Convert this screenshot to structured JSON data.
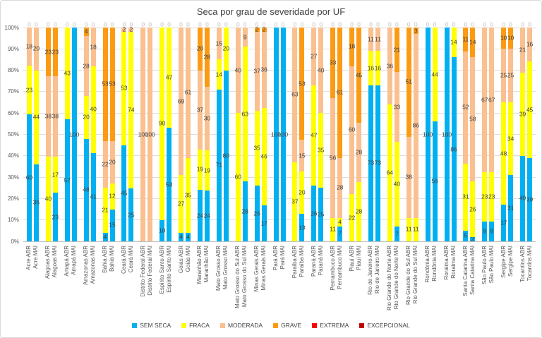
{
  "title": "Seca por grau de severidade por UF",
  "chart_data": {
    "type": "bar",
    "stacked": true,
    "unit": "percent",
    "grid": true,
    "legend_position": "bottom",
    "ylim": [
      0,
      100
    ],
    "y_ticks": [
      "0%",
      "10%",
      "20%",
      "30%",
      "40%",
      "50%",
      "60%",
      "70%",
      "80%",
      "90%",
      "100%"
    ],
    "series": [
      {
        "name": "SEM SECA",
        "color": "#00b0f0"
      },
      {
        "name": "FRACA",
        "color": "#ffff00"
      },
      {
        "name": "MODERADA",
        "color": "#fac090"
      },
      {
        "name": "GRAVE",
        "color": "#fc9b13"
      },
      {
        "name": "EXTREMA",
        "color": "#ff0000"
      },
      {
        "name": "EXCEPCIONAL",
        "color": "#c00000"
      }
    ],
    "bars": [
      {
        "label": "Acre ABR",
        "values": [
          60,
          23,
          18,
          0,
          0,
          0
        ]
      },
      {
        "label": "Acre MAI",
        "values": [
          36,
          44,
          20,
          0,
          0,
          0
        ]
      },
      {
        "label": "Alagoas ABR",
        "values": [
          0,
          40,
          38,
          23,
          0,
          0
        ]
      },
      {
        "label": "Alagoas MAI",
        "values": [
          23,
          17,
          38,
          23,
          0,
          0
        ]
      },
      {
        "label": "Amapá ABR",
        "values": [
          57,
          43,
          0,
          0,
          0,
          0
        ]
      },
      {
        "label": "Amapá MAI",
        "values": [
          100,
          0,
          0,
          0,
          0,
          0
        ]
      },
      {
        "label": "Amazonas ABR",
        "values": [
          48,
          20,
          28,
          4,
          0,
          0
        ]
      },
      {
        "label": "Amazonas MAI",
        "values": [
          41,
          40,
          18,
          0,
          0,
          0
        ]
      },
      {
        "label": "Bahia ABR",
        "values": [
          4,
          21,
          22,
          53,
          0,
          0
        ]
      },
      {
        "label": "Bahia MAI",
        "values": [
          15,
          12,
          20,
          53,
          0,
          0
        ]
      },
      {
        "label": "Ceará ABR",
        "values": [
          45,
          53,
          2,
          0,
          0,
          0
        ]
      },
      {
        "label": "Ceará MAI",
        "values": [
          25,
          74,
          2,
          0,
          0,
          0
        ]
      },
      {
        "label": "Distrito Federal ABR",
        "values": [
          0,
          0,
          100,
          0,
          0,
          0
        ]
      },
      {
        "label": "Distrito Federal MAI",
        "values": [
          0,
          0,
          100,
          0,
          0,
          0
        ]
      },
      {
        "label": "Espírito Santo ABR",
        "values": [
          10,
          90,
          0,
          0,
          0,
          0
        ]
      },
      {
        "label": "Espírito Santo MAI",
        "values": [
          53,
          47,
          0,
          0,
          0,
          0
        ]
      },
      {
        "label": "Goiás ABR",
        "values": [
          4,
          27,
          69,
          0,
          0,
          0
        ]
      },
      {
        "label": "Goiás MAI",
        "values": [
          4,
          35,
          61,
          0,
          0,
          0
        ]
      },
      {
        "label": "Maranhão ABR",
        "values": [
          24,
          19,
          37,
          20,
          0,
          0
        ]
      },
      {
        "label": "Maranhão MAI",
        "values": [
          24,
          19,
          30,
          28,
          0,
          0
        ]
      },
      {
        "label": "Mato Grosso ABR",
        "values": [
          71,
          14,
          15,
          0,
          0,
          0
        ]
      },
      {
        "label": "Mato Grosso MAI",
        "values": [
          80,
          20,
          0,
          0,
          0,
          0
        ]
      },
      {
        "label": "Mato Grosso do Sul ABR",
        "values": [
          0,
          60,
          40,
          0,
          0,
          0
        ]
      },
      {
        "label": "Mato Grosso do Sul MAI",
        "values": [
          28,
          63,
          9,
          0,
          0,
          0
        ]
      },
      {
        "label": "Minas Gerais ABR",
        "values": [
          26,
          35,
          37,
          2,
          0,
          0
        ]
      },
      {
        "label": "Minas Gerais MAI",
        "values": [
          17,
          46,
          36,
          2,
          0,
          0
        ]
      },
      {
        "label": "Pará ABR",
        "values": [
          100,
          0,
          0,
          0,
          0,
          0
        ]
      },
      {
        "label": "Pará MAI",
        "values": [
          100,
          0,
          0,
          0,
          0,
          0
        ]
      },
      {
        "label": "Paraíba ABR",
        "values": [
          0,
          37,
          63,
          0,
          0,
          0
        ]
      },
      {
        "label": "Paraíba MAI",
        "values": [
          13,
          20,
          15,
          53,
          0,
          0
        ]
      },
      {
        "label": "Paraná ABR",
        "values": [
          26,
          47,
          27,
          0,
          0,
          0
        ]
      },
      {
        "label": "Paraná MAI",
        "values": [
          25,
          35,
          40,
          0,
          0,
          0
        ]
      },
      {
        "label": "Pernambuco ABR",
        "values": [
          0,
          11,
          56,
          33,
          0,
          0
        ]
      },
      {
        "label": "Pernambuco MAI",
        "values": [
          7,
          4,
          28,
          61,
          0,
          0
        ]
      },
      {
        "label": "Piauí ABR",
        "values": [
          0,
          22,
          60,
          18,
          0,
          0
        ]
      },
      {
        "label": "Piauí MAI",
        "values": [
          0,
          28,
          28,
          45,
          0,
          0
        ]
      },
      {
        "label": "Rio de Janeiro ABR",
        "values": [
          73,
          16,
          11,
          0,
          0,
          0
        ]
      },
      {
        "label": "Rio de Janeiro MAI",
        "values": [
          73,
          16,
          11,
          0,
          0,
          0
        ]
      },
      {
        "label": "Rio Grande do Norte ABR",
        "values": [
          0,
          64,
          36,
          0,
          0,
          0
        ]
      },
      {
        "label": "Rio Grande do Norte MAI",
        "values": [
          7,
          40,
          33,
          21,
          0,
          0
        ]
      },
      {
        "label": "Rio Grande do Sul ABR",
        "values": [
          0,
          11,
          38,
          51,
          0,
          0
        ]
      },
      {
        "label": "Rio Grande do Sul MAI",
        "values": [
          0,
          11,
          86,
          3,
          0,
          0
        ]
      },
      {
        "label": "Rondônia ABR",
        "values": [
          100,
          0,
          0,
          0,
          0,
          0
        ]
      },
      {
        "label": "Rondônia MAI",
        "values": [
          56,
          44,
          0,
          0,
          0,
          0
        ]
      },
      {
        "label": "Roraima ABR",
        "values": [
          100,
          0,
          0,
          0,
          0,
          0
        ]
      },
      {
        "label": "Roraima MAI",
        "values": [
          86,
          14,
          0,
          0,
          0,
          0
        ]
      },
      {
        "label": "Santa Catarina ABR",
        "values": [
          5,
          31,
          52,
          11,
          0,
          0
        ]
      },
      {
        "label": "Santa Catarina MAI",
        "values": [
          2,
          26,
          58,
          14,
          0,
          0
        ]
      },
      {
        "label": "São Paulo ABR",
        "values": [
          9,
          23,
          67,
          0,
          0,
          0
        ]
      },
      {
        "label": "São Paulo MAI",
        "values": [
          9,
          23,
          67,
          0,
          0,
          0
        ]
      },
      {
        "label": "Sergipe ABR",
        "values": [
          17,
          48,
          25,
          10,
          0,
          0
        ]
      },
      {
        "label": "Sergipe MAI",
        "values": [
          31,
          34,
          25,
          10,
          0,
          0
        ]
      },
      {
        "label": "Tocantins ABR",
        "values": [
          40,
          39,
          21,
          0,
          0,
          0
        ]
      },
      {
        "label": "Tocantins MAI",
        "values": [
          39,
          45,
          16,
          0,
          0,
          0
        ]
      }
    ]
  }
}
